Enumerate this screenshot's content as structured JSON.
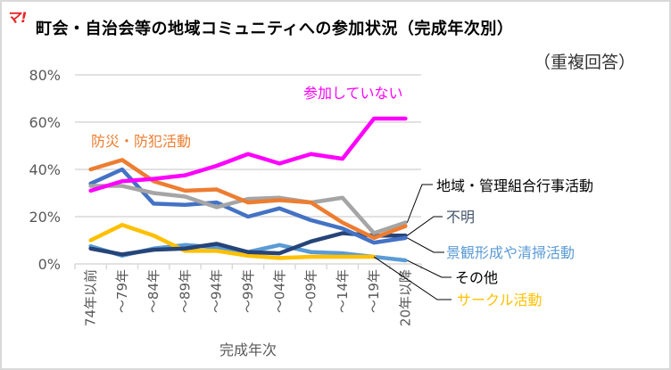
{
  "logo": {
    "text": "マ!",
    "color": "#e8262a"
  },
  "chart_data": {
    "type": "line",
    "title": "町会・自治会等の地域コミュニティへの参加状況（完成年次別）",
    "subtitle": "（重複回答）",
    "xlabel": "完成年次",
    "ylabel": "",
    "ylim": [
      0,
      80
    ],
    "yticks": [
      0,
      20,
      40,
      60,
      80
    ],
    "ytick_labels": [
      "0%",
      "20%",
      "40%",
      "60%",
      "80%"
    ],
    "grid": true,
    "categories": [
      "74年以前",
      "～79年",
      "～84年",
      "～89年",
      "～94年",
      "～99年",
      "～04年",
      "～09年",
      "～14年",
      "～19年",
      "20年以降"
    ],
    "series": [
      {
        "name": "参加していない",
        "color": "#ff00ff",
        "label_color": "#ff00ff",
        "values": [
          31,
          35,
          36,
          37.5,
          41.5,
          46.5,
          42.5,
          46.5,
          44.5,
          61.5,
          61.5
        ]
      },
      {
        "name": "防災・防犯活動",
        "color": "#ed7d31",
        "label_color": "#ed7d31",
        "values": [
          40,
          44,
          35,
          31,
          31.5,
          26,
          27,
          26,
          17.5,
          11,
          16
        ]
      },
      {
        "name": "地域・管理組合行事活動",
        "color": "#a5a5a5",
        "label_color": "#000000",
        "values": [
          33,
          33,
          30,
          28.5,
          24,
          27.5,
          28,
          26,
          28,
          13,
          17.5
        ]
      },
      {
        "name": "景観形成や清掃活動",
        "color": "#4472c4",
        "label_color": "#5b9bd5",
        "values": [
          34,
          40,
          25.5,
          25,
          26,
          20,
          23.5,
          18.5,
          15,
          9,
          11
        ]
      },
      {
        "name": "不明",
        "color": "#264478",
        "label_color": "#44546a",
        "values": [
          6.5,
          4,
          6,
          6.5,
          8.5,
          5,
          4.5,
          9.5,
          13,
          12,
          12
        ]
      },
      {
        "name": "その他",
        "color": "#5b9bd5",
        "label_color": "#000000",
        "values": [
          7.5,
          3.5,
          6.5,
          8,
          7,
          5,
          8,
          5,
          4.5,
          3,
          1.5
        ]
      },
      {
        "name": "サークル活動",
        "color": "#ffc000",
        "label_color": "#ffc000",
        "values": [
          10,
          16.5,
          12,
          5.5,
          5.5,
          3.5,
          2.5,
          3,
          3,
          3,
          null
        ]
      }
    ]
  }
}
